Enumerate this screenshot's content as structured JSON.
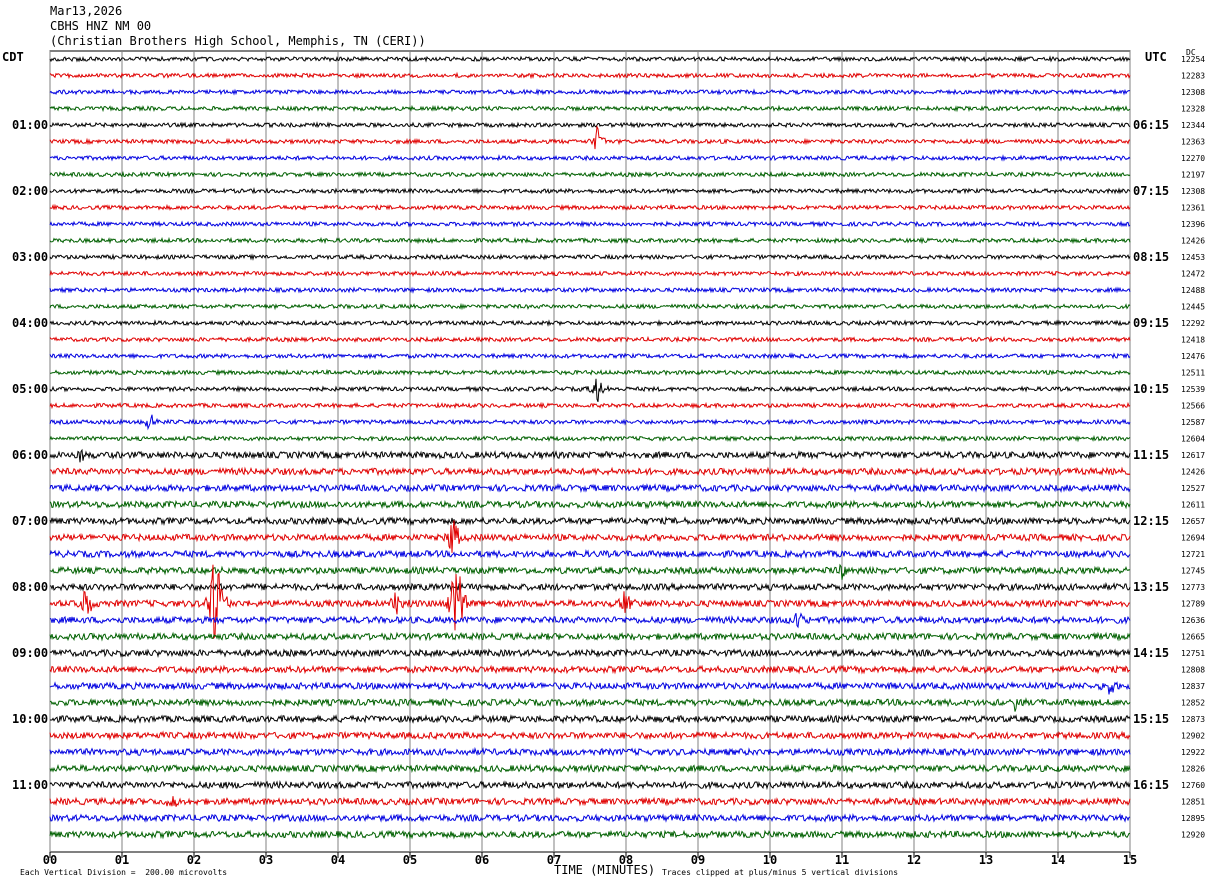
{
  "header": {
    "date": "Mar13,2026",
    "station": "CBHS HNZ NM 00",
    "location": "(Christian Brothers High School, Memphis, TN (CERI))"
  },
  "left_timezone": "CDT",
  "right_timezone": "UTC",
  "dc_label": "DC",
  "footer": {
    "scale_note": "Each Vertical Division =  200.00 microvolts",
    "xlabel": "TIME (MINUTES)",
    "clip_note": "Traces clipped at plus/minus 5 vertical divisions"
  },
  "chart_data": {
    "type": "line",
    "title": "",
    "xlabel": "TIME (MINUTES)",
    "ylabel": "",
    "xlim": [
      0,
      15
    ],
    "x_ticks": [
      "00",
      "01",
      "02",
      "03",
      "04",
      "05",
      "06",
      "07",
      "08",
      "09",
      "10",
      "11",
      "12",
      "13",
      "14",
      "15"
    ],
    "grid": true,
    "trace_colors": [
      "#000000",
      "#e00000",
      "#0000e0",
      "#006000"
    ],
    "trace_count": 48,
    "left_hour_labels": [
      {
        "row": 4,
        "label": "01:00"
      },
      {
        "row": 8,
        "label": "02:00"
      },
      {
        "row": 12,
        "label": "03:00"
      },
      {
        "row": 16,
        "label": "04:00"
      },
      {
        "row": 20,
        "label": "05:00"
      },
      {
        "row": 24,
        "label": "06:00"
      },
      {
        "row": 28,
        "label": "07:00"
      },
      {
        "row": 32,
        "label": "08:00"
      },
      {
        "row": 36,
        "label": "09:00"
      },
      {
        "row": 40,
        "label": "10:00"
      },
      {
        "row": 44,
        "label": "11:00"
      }
    ],
    "right_hour_labels": [
      {
        "row": 4,
        "label": "06:15"
      },
      {
        "row": 8,
        "label": "07:15"
      },
      {
        "row": 12,
        "label": "08:15"
      },
      {
        "row": 16,
        "label": "09:15"
      },
      {
        "row": 20,
        "label": "10:15"
      },
      {
        "row": 24,
        "label": "11:15"
      },
      {
        "row": 28,
        "label": "12:15"
      },
      {
        "row": 32,
        "label": "13:15"
      },
      {
        "row": 36,
        "label": "14:15"
      },
      {
        "row": 40,
        "label": "15:15"
      },
      {
        "row": 44,
        "label": "16:15"
      }
    ],
    "dc_values": [
      "12254",
      "12283",
      "12308",
      "12328",
      "12344",
      "12363",
      "12270",
      "12197",
      "12308",
      "12361",
      "12396",
      "12426",
      "12453",
      "12472",
      "12488",
      "12445",
      "12292",
      "12418",
      "12476",
      "12511",
      "12539",
      "12566",
      "12587",
      "12604",
      "12617",
      "12426",
      "12527",
      "12611",
      "12657",
      "12694",
      "12721",
      "12745",
      "12773",
      "12789",
      "12636",
      "12665",
      "12751",
      "12808",
      "12837",
      "12852",
      "12873",
      "12902",
      "12922",
      "12826",
      "12760",
      "12851",
      "12895",
      "12920"
    ],
    "events": [
      {
        "row": 5,
        "minute": 7.6,
        "amplitude": 1.0
      },
      {
        "row": 20,
        "minute": 7.6,
        "amplitude": 1.0
      },
      {
        "row": 22,
        "minute": 1.4,
        "amplitude": 0.8
      },
      {
        "row": 24,
        "minute": 0.4,
        "amplitude": 0.8
      },
      {
        "row": 29,
        "minute": 5.6,
        "amplitude": 1.5
      },
      {
        "row": 31,
        "minute": 11.0,
        "amplitude": 0.5
      },
      {
        "row": 33,
        "minute": 2.3,
        "amplitude": 5.0
      },
      {
        "row": 33,
        "minute": 5.65,
        "amplitude": 4.5
      },
      {
        "row": 33,
        "minute": 0.5,
        "amplitude": 1.2
      },
      {
        "row": 33,
        "minute": 4.8,
        "amplitude": 1.0
      },
      {
        "row": 33,
        "minute": 8.0,
        "amplitude": 1.0
      },
      {
        "row": 34,
        "minute": 10.4,
        "amplitude": 0.8
      },
      {
        "row": 38,
        "minute": 14.7,
        "amplitude": 0.7
      },
      {
        "row": 39,
        "minute": 13.4,
        "amplitude": 0.7
      },
      {
        "row": 45,
        "minute": 1.7,
        "amplitude": 0.9
      }
    ]
  }
}
